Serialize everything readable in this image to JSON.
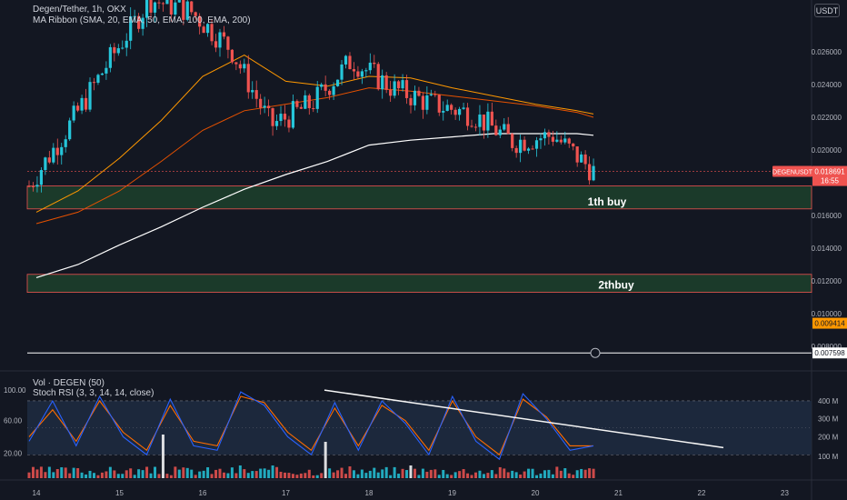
{
  "header": {
    "symbol": "Degen/Tether, 1h, OKX",
    "ma_ribbon": "MA Ribbon (SMA, 20, EMA, 50, EMA, 100, EMA, 200)",
    "currency_button": "USDT"
  },
  "lower_pane": {
    "vol_label": "Vol · DEGEN (50)",
    "stoch_label": "Stoch RSI (3, 3, 14, 14, close)",
    "left_ticks": [
      "100.00",
      "60.00",
      "20.00"
    ],
    "right_ticks": [
      "400 M",
      "300 M",
      "200 M",
      "100 M"
    ]
  },
  "price_axis": {
    "ticks": [
      "0.026000",
      "0.024000",
      "0.022000",
      "0.020000",
      "0.016000",
      "0.014000",
      "0.012000",
      "0.010000",
      "0.008000"
    ],
    "current_symbol": "DEGENUSDT",
    "current_price": "0.018691",
    "countdown": "16:55",
    "badge_orange": "0.009414",
    "badge_white": "0.007598"
  },
  "time_axis": {
    "ticks": [
      "14",
      "15",
      "16",
      "17",
      "18",
      "19",
      "20",
      "21",
      "22",
      "23"
    ]
  },
  "zones": [
    {
      "label": "1th buy",
      "top": 0.0178,
      "bottom": 0.0164
    },
    {
      "label": "2thbuy",
      "top": 0.0124,
      "bottom": 0.0113
    }
  ],
  "colors": {
    "up": "#26c6da",
    "down": "#ef5350",
    "sma20": "#f7525f",
    "ema50": "#ff9800",
    "ema100": "#e65100",
    "ema200": "#ffffff",
    "zone_fill": "#1b3a2a",
    "zone_border": "#ef5350",
    "stoch_k": "#2962ff",
    "stoch_d": "#ff6d00"
  },
  "chart_data": {
    "type": "line",
    "title": "Degen/Tether, 1h, OKX",
    "x": [
      "14",
      "14.5",
      "15",
      "15.5",
      "16",
      "16.5",
      "17",
      "17.5",
      "18",
      "18.5",
      "19",
      "19.5",
      "20",
      "20.5",
      "20.7"
    ],
    "ylim": [
      0.0072,
      0.0272
    ],
    "series": [
      {
        "name": "close",
        "values": [
          0.0178,
          0.0215,
          0.0255,
          0.0292,
          0.0285,
          0.0262,
          0.0215,
          0.0228,
          0.0255,
          0.0238,
          0.0228,
          0.0222,
          0.0205,
          0.0209,
          0.0187
        ]
      },
      {
        "name": "EMA 50",
        "values": [
          0.0162,
          0.0175,
          0.0195,
          0.0218,
          0.0245,
          0.0258,
          0.0242,
          0.0239,
          0.0245,
          0.0244,
          0.0238,
          0.0233,
          0.0228,
          0.0224,
          0.0222
        ]
      },
      {
        "name": "EMA 100",
        "values": [
          0.0155,
          0.0162,
          0.0175,
          0.0193,
          0.0212,
          0.0224,
          0.0228,
          0.0232,
          0.0238,
          0.0236,
          0.0233,
          0.023,
          0.0227,
          0.0223,
          0.022
        ]
      },
      {
        "name": "EMA 200",
        "values": [
          0.0122,
          0.013,
          0.0142,
          0.0153,
          0.0165,
          0.0176,
          0.0185,
          0.0193,
          0.0203,
          0.0206,
          0.0208,
          0.021,
          0.021,
          0.021,
          0.0209
        ]
      }
    ],
    "stoch_rsi": {
      "ylim": [
        0,
        100
      ],
      "k": [
        35,
        80,
        30,
        85,
        40,
        20,
        82,
        30,
        25,
        90,
        75,
        40,
        20,
        78,
        25,
        80,
        55,
        20,
        85,
        35,
        15,
        88,
        60,
        25,
        30
      ],
      "d": [
        40,
        70,
        35,
        80,
        45,
        25,
        75,
        35,
        30,
        85,
        78,
        45,
        25,
        72,
        30,
        75,
        58,
        25,
        80,
        40,
        20,
        82,
        62,
        30,
        30
      ]
    }
  }
}
